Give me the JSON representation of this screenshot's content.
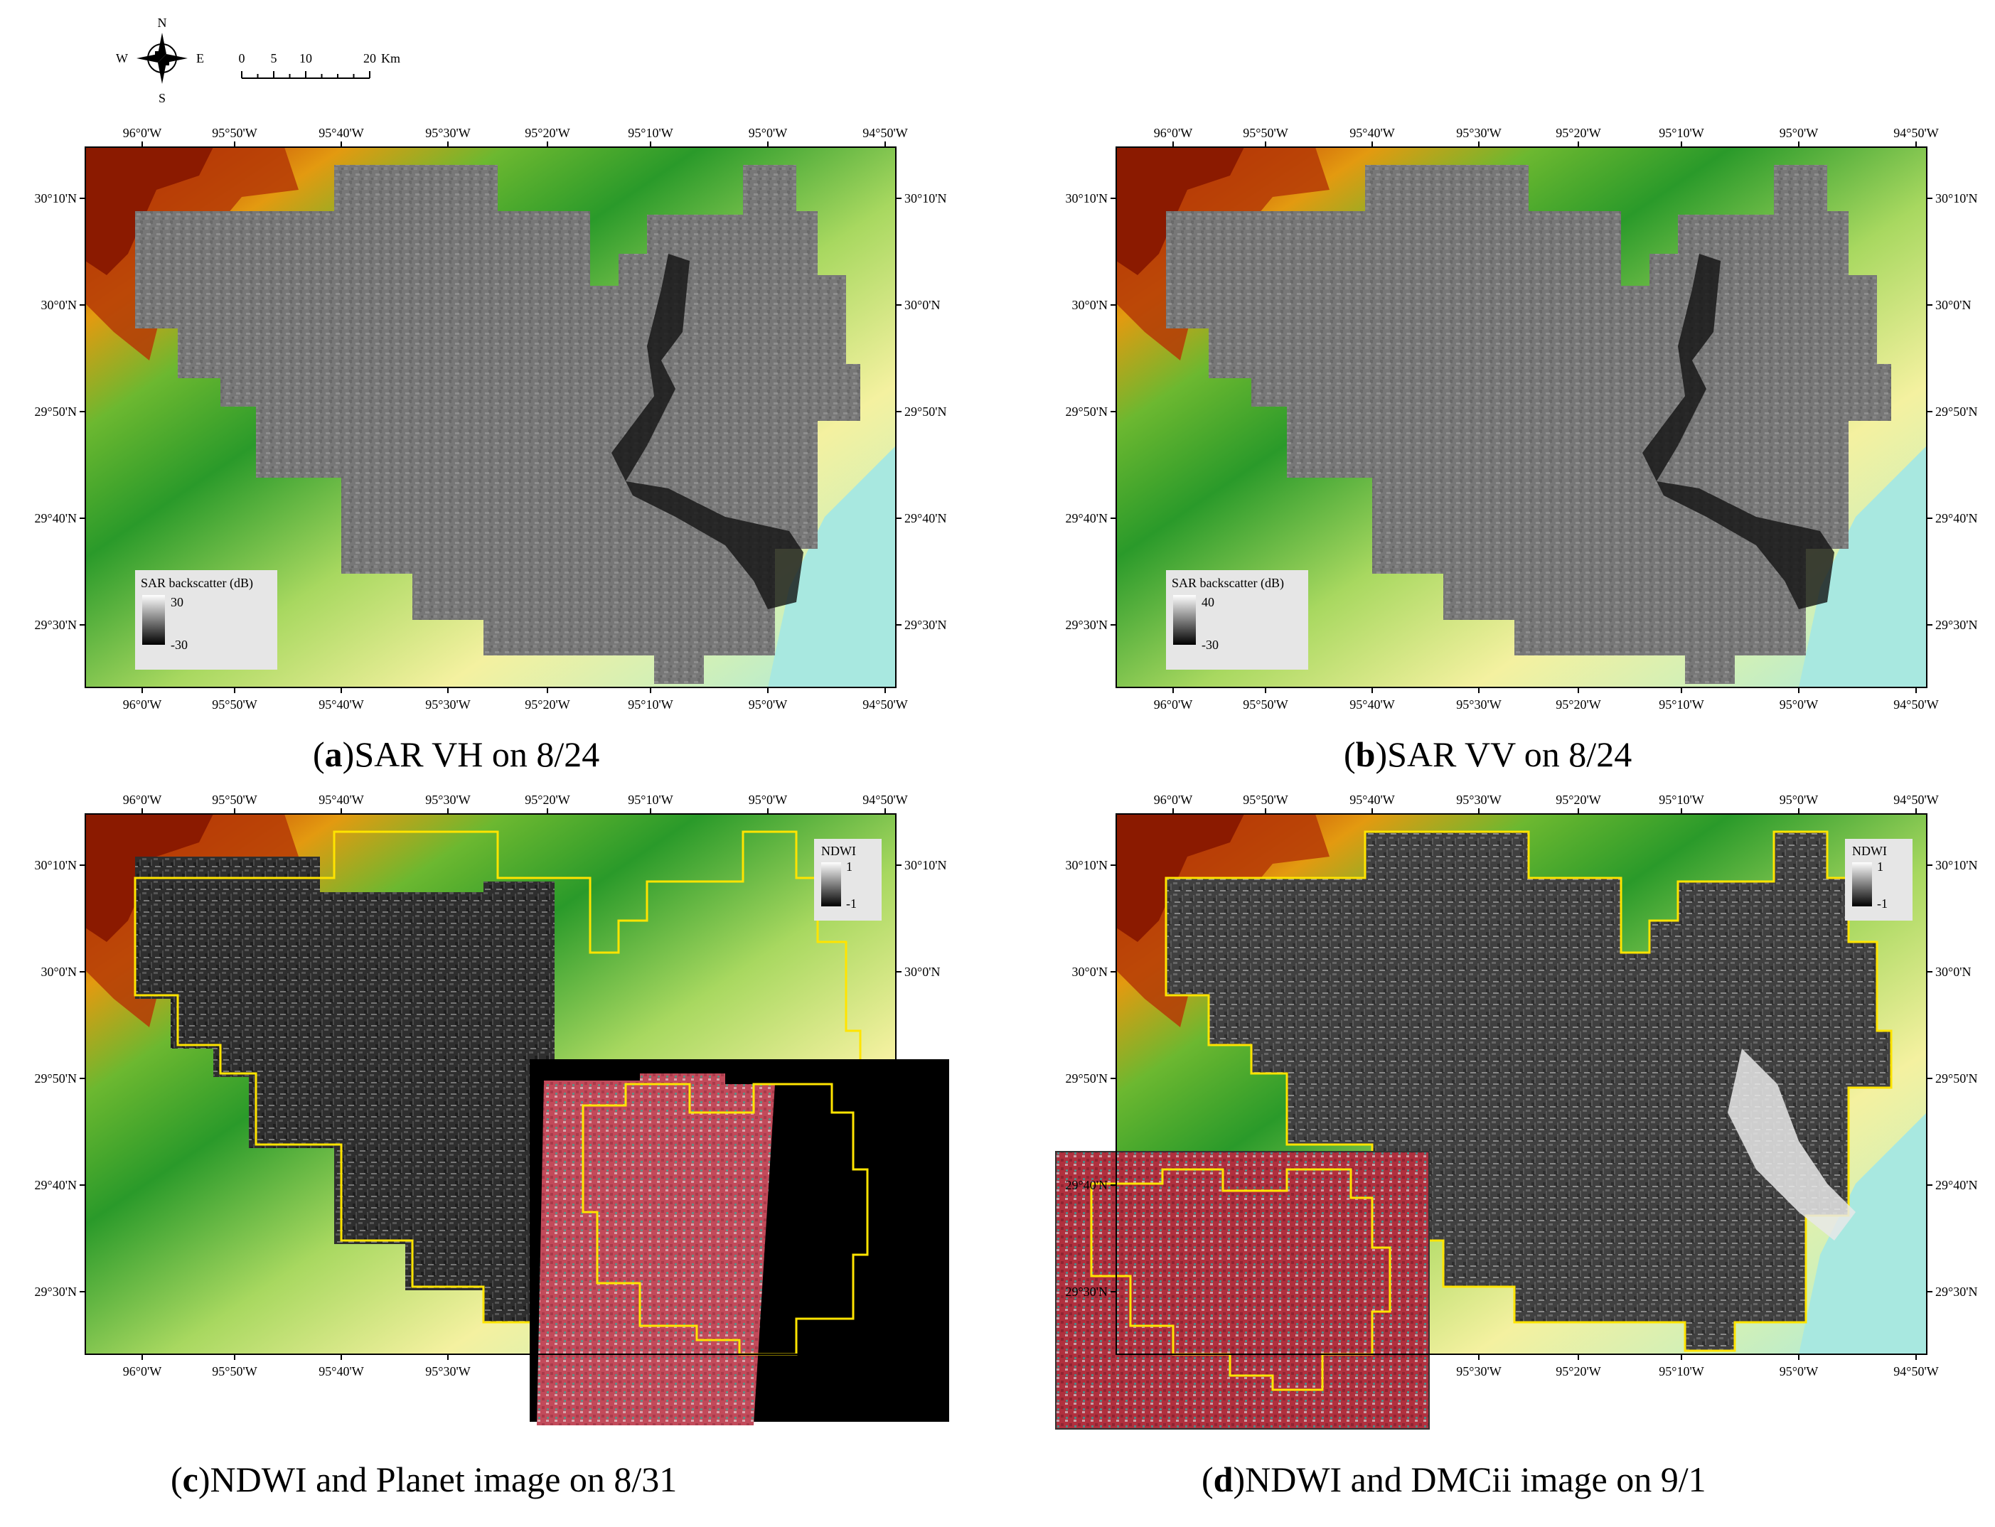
{
  "compass": {
    "n": "N",
    "s": "S",
    "e": "E",
    "w": "W"
  },
  "scalebar": {
    "labels": [
      "0",
      "5",
      "10",
      "20"
    ],
    "unit": "Km"
  },
  "axes": {
    "lon_ticks": [
      "96°0'W",
      "95°50'W",
      "95°40'W",
      "95°30'W",
      "95°20'W",
      "95°10'W",
      "95°0'W",
      "94°50'W"
    ],
    "lat_ticks": [
      "30°10'N",
      "30°0'N",
      "29°50'N",
      "29°40'N",
      "29°30'N"
    ]
  },
  "colors": {
    "dem_high": "#8b1a00",
    "dem_mid": "#2a9a2a",
    "dem_low": "#f4f1a0",
    "dem_coast": "#a8e8e0",
    "sar_gray": "#7a7a7a",
    "ndwi_dark": "#2a2a2a",
    "boundary_yellow": "#ffe400",
    "false_color_red": "#c24a5a"
  },
  "panels": [
    {
      "id": "a",
      "letter": "a",
      "caption": "SAR VH on 8/24",
      "legend": {
        "title": "SAR backscatter (dB)",
        "max": "30",
        "min": "-30"
      }
    },
    {
      "id": "b",
      "letter": "b",
      "caption": "SAR VV on 8/24",
      "legend": {
        "title": "SAR backscatter (dB)",
        "max": "40",
        "min": "-30"
      }
    },
    {
      "id": "c",
      "letter": "c",
      "caption": "NDWI and Planet image on 8/31",
      "legend": {
        "title": "NDWI",
        "max": "1",
        "min": "-1"
      }
    },
    {
      "id": "d",
      "letter": "d",
      "caption": "NDWI and DMCii image on 9/1",
      "legend": {
        "title": "NDWI",
        "max": "1",
        "min": "-1"
      }
    }
  ]
}
